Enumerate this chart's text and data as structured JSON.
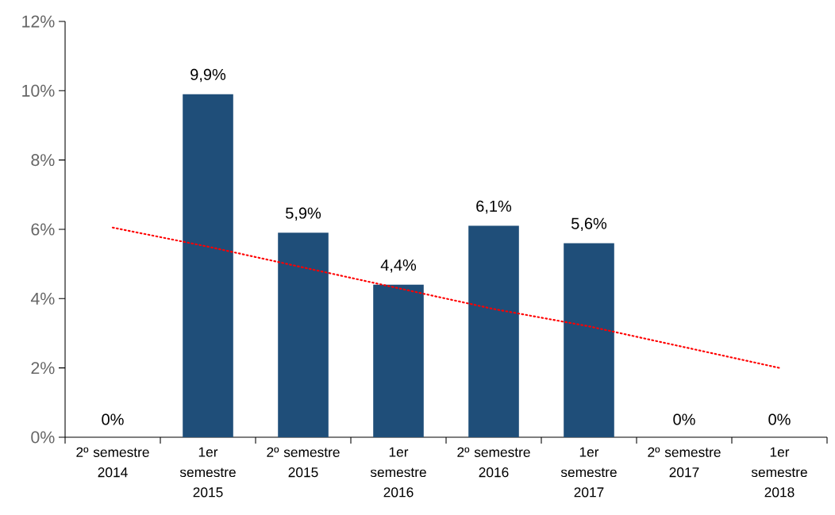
{
  "chart_data": {
    "type": "bar",
    "categories": [
      "2º semestre 2014",
      "1er semestre 2015",
      "2º semestre 2015",
      "1er semestre 2016",
      "2º semestre 2016",
      "1er semestre 2017",
      "2º semestre 2017",
      "1er semestre 2018"
    ],
    "series": [
      {
        "color": "#1f4e79",
        "values": [
          0,
          9.9,
          5.9,
          4.4,
          6.1,
          5.6,
          0,
          0
        ],
        "value_labels": [
          "0%",
          "9,9%",
          "5,9%",
          "4,4%",
          "6,1%",
          "5,6%",
          "0%",
          "0%"
        ]
      },
      {
        "type": "line",
        "color": "#ff0000",
        "line_style": "dotted",
        "values": [
          6.05,
          5.5,
          4.9,
          4.3,
          3.7,
          3.2,
          2.6,
          2.0
        ]
      }
    ],
    "ylim": [
      0,
      12
    ],
    "yticks": [
      {
        "value": 0,
        "label": "0%"
      },
      {
        "value": 2,
        "label": "2%"
      },
      {
        "value": 4,
        "label": "4%"
      },
      {
        "value": 6,
        "label": "6%"
      },
      {
        "value": 8,
        "label": "8%"
      },
      {
        "value": 10,
        "label": "10%"
      },
      {
        "value": 12,
        "label": "12%"
      }
    ]
  }
}
